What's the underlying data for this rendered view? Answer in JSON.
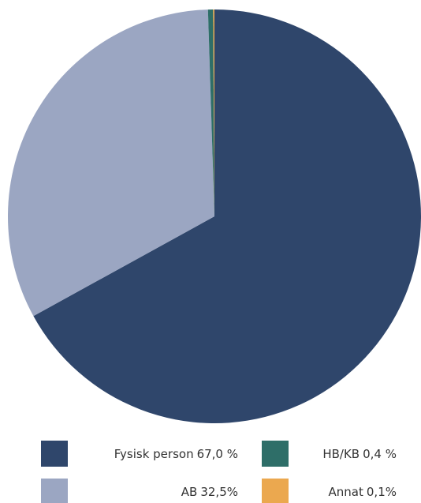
{
  "chart_data": {
    "type": "pie",
    "categories": [
      "Fysisk person",
      "AB",
      "HB/KB",
      "Annat"
    ],
    "values": [
      67.0,
      32.5,
      0.4,
      0.1
    ],
    "value_labels": [
      "67,0 %",
      "32,5%",
      "0,4 %",
      "0,1%"
    ],
    "colors": [
      "#2f466b",
      "#9ba6c2",
      "#2e6e68",
      "#eba84f"
    ],
    "legend": "bottom"
  }
}
